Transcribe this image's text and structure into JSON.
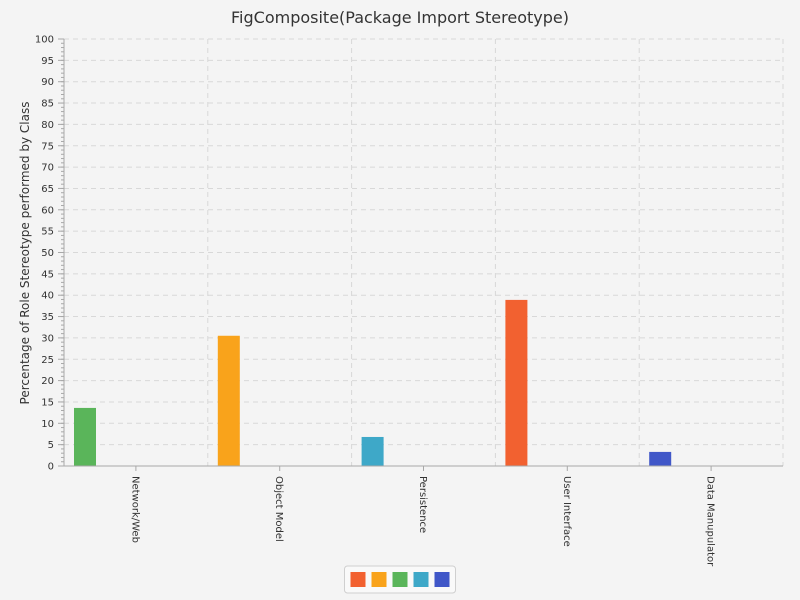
{
  "chart_data": {
    "type": "bar",
    "title": "FigComposite(Package Import Stereotype)",
    "xlabel": "",
    "ylabel": "Percentage of Role Stereotype performed by Class",
    "ylim": [
      0,
      100
    ],
    "y_major_step": 5,
    "y_minor_step": 1,
    "grid": true,
    "legend_position": "bottom-center",
    "categories": [
      "Network/Web",
      "Object Model",
      "Persistence",
      "User Interface",
      "Data Manupulator"
    ],
    "series": [
      {
        "color": "#f26130",
        "values": [
          0,
          0,
          0,
          38.9,
          0
        ]
      },
      {
        "color": "#f9a31b",
        "values": [
          0,
          30.5,
          0,
          0,
          0
        ]
      },
      {
        "color": "#5ab55a",
        "values": [
          13.6,
          0,
          0,
          0,
          0
        ]
      },
      {
        "color": "#3ea8c8",
        "values": [
          0,
          0,
          6.8,
          0,
          0
        ]
      },
      {
        "color": "#4057c8",
        "values": [
          0,
          0,
          0,
          0,
          3.3
        ]
      }
    ]
  }
}
